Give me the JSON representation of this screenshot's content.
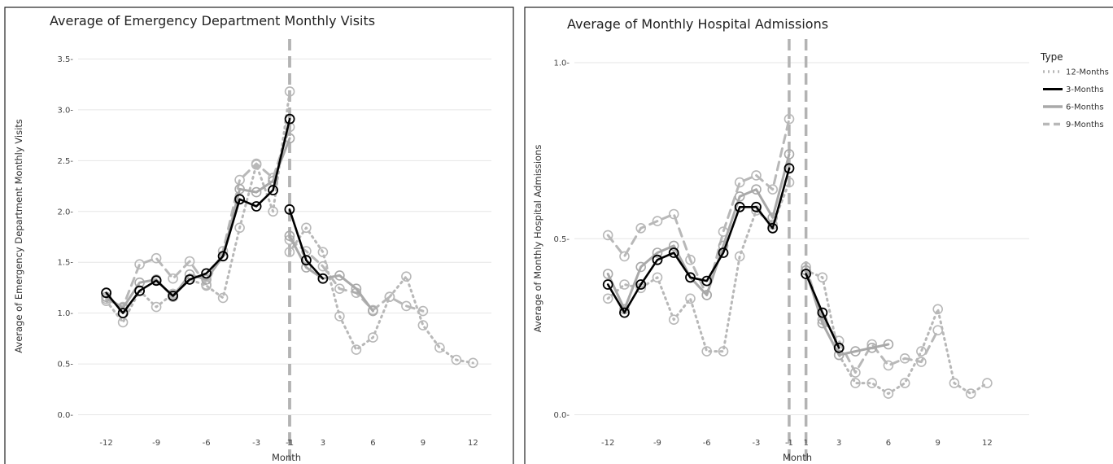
{
  "styles": {
    "12-Months": {
      "color": "#b8b8b8",
      "dash": "2,5",
      "width": 3
    },
    "3-Months": {
      "color": "#000000",
      "dash": "",
      "width": 2.6
    },
    "6-Months": {
      "color": "#a9a9a9",
      "dash": "",
      "width": 3
    },
    "9-Months": {
      "color": "#b8b8b8",
      "dash": "10,7",
      "width": 3
    }
  },
  "legend": {
    "title": "Type",
    "items": [
      "12-Months",
      "3-Months",
      "6-Months",
      "9-Months"
    ]
  },
  "chart_data": [
    {
      "type": "line",
      "title": "Average of Emergency Department Monthly Visits",
      "xlabel": "Month",
      "ylabel": "Average of Emergency Department Monthly Visits",
      "xticks": [
        -12,
        -9,
        -6,
        -3,
        -1,
        1,
        3,
        6,
        9,
        12
      ],
      "yticks": [
        0.0,
        0.5,
        1.0,
        1.5,
        2.0,
        2.5,
        3.0,
        3.5
      ],
      "ytick_labels": [
        "0.0",
        "0.5",
        "1.0",
        "1.5",
        "2.0",
        "2.5",
        "3.0",
        "3.5"
      ],
      "ylim": [
        -0.1,
        3.65
      ],
      "grid": true,
      "reference_lines": [
        -1,
        1
      ],
      "series": [
        {
          "name": "12-Months",
          "x": [
            -12,
            -11,
            -10,
            -9,
            -8,
            -7,
            -6,
            -5,
            -4,
            -3,
            -2,
            -1,
            1,
            2,
            3,
            4,
            5,
            6,
            7,
            8,
            9,
            10,
            11,
            12
          ],
          "y": [
            1.12,
            0.91,
            1.22,
            1.06,
            1.19,
            1.33,
            1.27,
            1.15,
            1.84,
            2.46,
            2.0,
            3.18,
            1.6,
            1.84,
            1.6,
            0.97,
            0.64,
            0.76,
            1.16,
            1.36,
            0.88,
            0.66,
            0.54,
            0.51
          ]
        },
        {
          "name": "3-Months",
          "x": [
            -12,
            -11,
            -10,
            -9,
            -8,
            -7,
            -6,
            -5,
            -4,
            -3,
            -2,
            -1,
            1,
            2,
            3
          ],
          "y": [
            1.2,
            1.0,
            1.22,
            1.32,
            1.17,
            1.33,
            1.39,
            1.56,
            2.12,
            2.05,
            2.21,
            2.91,
            2.02,
            1.52,
            1.34
          ]
        },
        {
          "name": "6-Months",
          "x": [
            -12,
            -11,
            -10,
            -9,
            -8,
            -7,
            -6,
            -5,
            -4,
            -3,
            -2,
            -1,
            1,
            2,
            3,
            4,
            5,
            6
          ],
          "y": [
            1.16,
            1.05,
            1.3,
            1.33,
            1.16,
            1.38,
            1.33,
            1.56,
            2.22,
            2.19,
            2.3,
            2.72,
            1.76,
            1.45,
            1.34,
            1.37,
            1.24,
            1.02
          ]
        },
        {
          "name": "9-Months",
          "x": [
            -12,
            -11,
            -10,
            -9,
            -8,
            -7,
            -6,
            -5,
            -4,
            -3,
            -2,
            -1,
            1,
            2,
            3,
            4,
            5,
            6,
            7,
            8,
            9
          ],
          "y": [
            1.14,
            1.06,
            1.48,
            1.54,
            1.34,
            1.51,
            1.28,
            1.61,
            2.31,
            2.47,
            2.33,
            2.83,
            1.72,
            1.61,
            1.46,
            1.24,
            1.2,
            1.03,
            1.16,
            1.07,
            1.02
          ]
        }
      ]
    },
    {
      "type": "line",
      "title": "Average of Monthly Hospital Admissions",
      "xlabel": "Month",
      "ylabel": "Average of Monthly Hospital Admissions",
      "xticks": [
        -12,
        -9,
        -6,
        -3,
        -1,
        1,
        3,
        6,
        9,
        12
      ],
      "yticks": [
        0.0,
        0.5,
        1.0
      ],
      "ytick_labels": [
        "0.0",
        "0.5",
        "1.0"
      ],
      "ylim": [
        -0.07,
        1.13
      ],
      "grid": true,
      "reference_lines": [
        -1,
        1
      ],
      "series": [
        {
          "name": "12-Months",
          "x": [
            -12,
            -11,
            -10,
            -9,
            -8,
            -7,
            -6,
            -5,
            -4,
            -3,
            -2,
            -1,
            1,
            2,
            3,
            4,
            5,
            6,
            7,
            8,
            9,
            10,
            11,
            12
          ],
          "y": [
            0.33,
            0.37,
            0.36,
            0.39,
            0.27,
            0.33,
            0.18,
            0.18,
            0.45,
            0.58,
            0.54,
            0.66,
            0.41,
            0.39,
            0.17,
            0.09,
            0.09,
            0.06,
            0.09,
            0.18,
            0.3,
            0.09,
            0.06,
            0.09
          ]
        },
        {
          "name": "3-Months",
          "x": [
            -12,
            -11,
            -10,
            -9,
            -8,
            -7,
            -6,
            -5,
            -4,
            -3,
            -2,
            -1,
            1,
            2,
            3
          ],
          "y": [
            0.37,
            0.29,
            0.37,
            0.44,
            0.46,
            0.39,
            0.38,
            0.46,
            0.59,
            0.59,
            0.53,
            0.7,
            0.4,
            0.29,
            0.19
          ]
        },
        {
          "name": "6-Months",
          "x": [
            -12,
            -11,
            -10,
            -9,
            -8,
            -7,
            -6,
            -5,
            -4,
            -3,
            -2,
            -1,
            1,
            2,
            3,
            4,
            5,
            6
          ],
          "y": [
            0.4,
            0.3,
            0.42,
            0.46,
            0.48,
            0.39,
            0.34,
            0.48,
            0.62,
            0.64,
            0.56,
            0.74,
            0.41,
            0.26,
            0.17,
            0.18,
            0.19,
            0.2
          ]
        },
        {
          "name": "9-Months",
          "x": [
            -12,
            -11,
            -10,
            -9,
            -8,
            -7,
            -6,
            -5,
            -4,
            -3,
            -2,
            -1,
            1,
            2,
            3,
            4,
            5,
            6,
            7,
            8,
            9
          ],
          "y": [
            0.51,
            0.45,
            0.53,
            0.55,
            0.57,
            0.44,
            0.34,
            0.52,
            0.66,
            0.68,
            0.64,
            0.84,
            0.42,
            0.27,
            0.21,
            0.12,
            0.2,
            0.14,
            0.16,
            0.15,
            0.24
          ]
        }
      ]
    }
  ]
}
